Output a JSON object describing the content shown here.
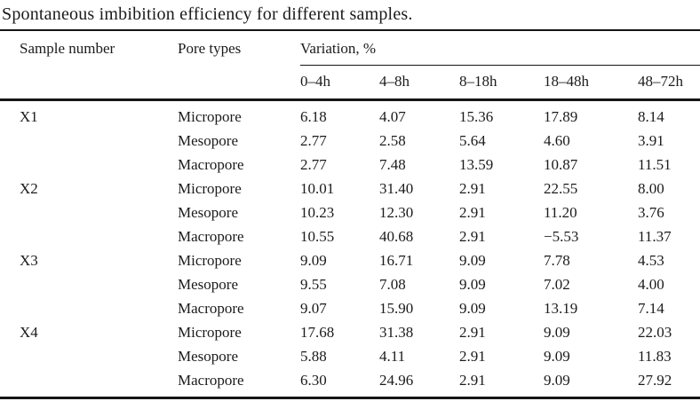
{
  "title": "Spontaneous imbibition efficiency for different samples.",
  "colors": {
    "background": "#ffffff",
    "text": "#1b1b1b",
    "rule": "#151515"
  },
  "table": {
    "headers": {
      "sample": "Sample number",
      "pore": "Pore types",
      "variation_group": "Variation, %",
      "times": [
        "0–4h",
        "4–8h",
        "8–18h",
        "18–48h",
        "48–72h"
      ]
    },
    "samples": [
      {
        "name": "X1",
        "rows": [
          {
            "pore": "Micropore",
            "values": [
              "6.18",
              "4.07",
              "15.36",
              "17.89",
              "8.14"
            ]
          },
          {
            "pore": "Mesopore",
            "values": [
              "2.77",
              "2.58",
              "5.64",
              "4.60",
              "3.91"
            ]
          },
          {
            "pore": "Macropore",
            "values": [
              "2.77",
              "7.48",
              "13.59",
              "10.87",
              "11.51"
            ]
          }
        ]
      },
      {
        "name": "X2",
        "rows": [
          {
            "pore": "Micropore",
            "values": [
              "10.01",
              "31.40",
              "2.91",
              "22.55",
              "8.00"
            ]
          },
          {
            "pore": "Mesopore",
            "values": [
              "10.23",
              "12.30",
              "2.91",
              "11.20",
              "3.76"
            ]
          },
          {
            "pore": "Macropore",
            "values": [
              "10.55",
              "40.68",
              "2.91",
              "−5.53",
              "11.37"
            ]
          }
        ]
      },
      {
        "name": "X3",
        "rows": [
          {
            "pore": "Micropore",
            "values": [
              "9.09",
              "16.71",
              "9.09",
              "7.78",
              "4.53"
            ]
          },
          {
            "pore": "Mesopore",
            "values": [
              "9.55",
              "7.08",
              "9.09",
              "7.02",
              "4.00"
            ]
          },
          {
            "pore": "Macropore",
            "values": [
              "9.07",
              "15.90",
              "9.09",
              "13.19",
              "7.14"
            ]
          }
        ]
      },
      {
        "name": "X4",
        "rows": [
          {
            "pore": "Micropore",
            "values": [
              "17.68",
              "31.38",
              "2.91",
              "9.09",
              "22.03"
            ]
          },
          {
            "pore": "Mesopore",
            "values": [
              "5.88",
              "4.11",
              "2.91",
              "9.09",
              "11.83"
            ]
          },
          {
            "pore": "Macropore",
            "values": [
              "6.30",
              "24.96",
              "2.91",
              "9.09",
              "27.92"
            ]
          }
        ]
      }
    ]
  }
}
